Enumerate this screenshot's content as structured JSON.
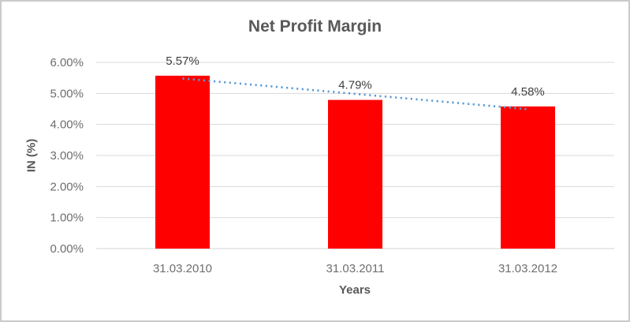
{
  "chart_data": {
    "type": "bar",
    "title": "Net Profit Margin",
    "xlabel": "Years",
    "ylabel": "IN (%)",
    "categories": [
      "31.03.2010",
      "31.03.2011",
      "31.03.2012"
    ],
    "series": [
      {
        "name": "Net Profit Margin",
        "values": [
          5.57,
          4.79,
          4.58
        ]
      }
    ],
    "data_labels": [
      "5.57%",
      "4.79%",
      "4.58%"
    ],
    "ylim": [
      0,
      6
    ],
    "ytick_interval": 1,
    "ytick_labels": [
      "0.00%",
      "1.00%",
      "2.00%",
      "3.00%",
      "4.00%",
      "5.00%",
      "6.00%"
    ],
    "grid": true,
    "legend": "none",
    "trendline": {
      "type": "linear",
      "style": "dotted",
      "color": "#5B9BD5",
      "endpoints": [
        5.48,
        4.49
      ]
    },
    "colors": {
      "bar": "#FF0000",
      "trendline": "#5B9BD5",
      "title_text": "#595959",
      "axis_title_text": "#595959",
      "tick_text": "#6E6E6E",
      "data_label_text": "#404040",
      "gridline": "#D9D9D9",
      "axis_line": "#D3D3D3",
      "frame_border": "#CBCBCB",
      "background": "#FFFFFF"
    }
  }
}
